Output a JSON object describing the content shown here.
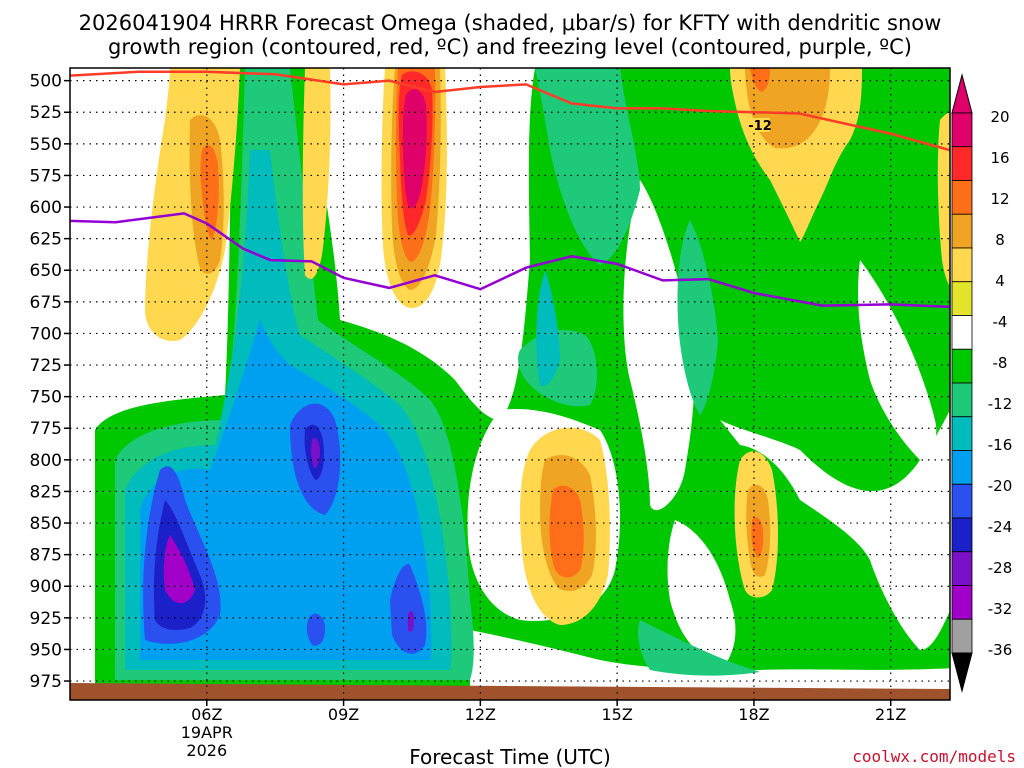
{
  "chart_data": {
    "type": "heatmap",
    "title_line1": "2026041904 HRRR Forecast Omega (shaded, μbar/s) for KFTY with dendritic snow",
    "title_line2": "growth region (contoured, red, ºC) and freezing level (contoured, purple, ºC)",
    "xlabel": "Forecast Time (UTC)",
    "credit": "coolwx.com/models",
    "x_range": [
      3,
      22.3
    ],
    "y_range": [
      490,
      990
    ],
    "y_ticks": [
      500,
      525,
      550,
      575,
      600,
      625,
      650,
      675,
      700,
      725,
      750,
      775,
      800,
      825,
      850,
      875,
      900,
      925,
      950,
      975
    ],
    "x_ticks": [
      {
        "hour": 6,
        "label": "06Z",
        "sub1": "19APR",
        "sub2": "2026"
      },
      {
        "hour": 9,
        "label": "09Z"
      },
      {
        "hour": 12,
        "label": "12Z"
      },
      {
        "hour": 15,
        "label": "15Z"
      },
      {
        "hour": 18,
        "label": "18Z"
      },
      {
        "hour": 21,
        "label": "21Z"
      }
    ],
    "colorbar_labels": [
      "20",
      "16",
      "12",
      "8",
      "4",
      "-4",
      "-8",
      "-12",
      "-16",
      "-20",
      "-24",
      "-28",
      "-32",
      "-36"
    ],
    "colorbar_colors": [
      "#e0006a",
      "#ff2828",
      "#ff6e19",
      "#f0a423",
      "#ffd84f",
      "#e4e42c",
      "#ffffff",
      "#00c800",
      "#1fc97a",
      "#00bcbc",
      "#00a0f0",
      "#2a50f0",
      "#1c20c8",
      "#7a10c8",
      "#a000c8",
      "#a0a0a0"
    ],
    "freezing_level_line": {
      "color": "#9400d3",
      "points": [
        [
          3,
          611
        ],
        [
          4,
          612
        ],
        [
          5.5,
          605
        ],
        [
          6,
          613
        ],
        [
          6.8,
          633
        ],
        [
          7.4,
          642
        ],
        [
          8.3,
          643
        ],
        [
          9,
          656
        ],
        [
          10,
          664
        ],
        [
          11,
          654
        ],
        [
          12,
          665
        ],
        [
          13,
          648
        ],
        [
          14,
          639
        ],
        [
          15,
          645
        ],
        [
          16,
          658
        ],
        [
          17,
          657
        ],
        [
          18,
          668
        ],
        [
          19.5,
          678
        ],
        [
          21,
          677
        ],
        [
          22.3,
          679
        ]
      ]
    },
    "dgz_line": {
      "color": "#ff3c28",
      "label": "-12",
      "points": [
        [
          3,
          496
        ],
        [
          4.5,
          493
        ],
        [
          6,
          493
        ],
        [
          7.5,
          495
        ],
        [
          9,
          503
        ],
        [
          10,
          500
        ],
        [
          11,
          509
        ],
        [
          12,
          505
        ],
        [
          13,
          503
        ],
        [
          14,
          518
        ],
        [
          15,
          522
        ],
        [
          16,
          522
        ],
        [
          17,
          524
        ],
        [
          18,
          525
        ],
        [
          19,
          526
        ],
        [
          20,
          534
        ],
        [
          21,
          542
        ],
        [
          22.3,
          555
        ]
      ]
    },
    "ground_color": "#a0522d"
  }
}
